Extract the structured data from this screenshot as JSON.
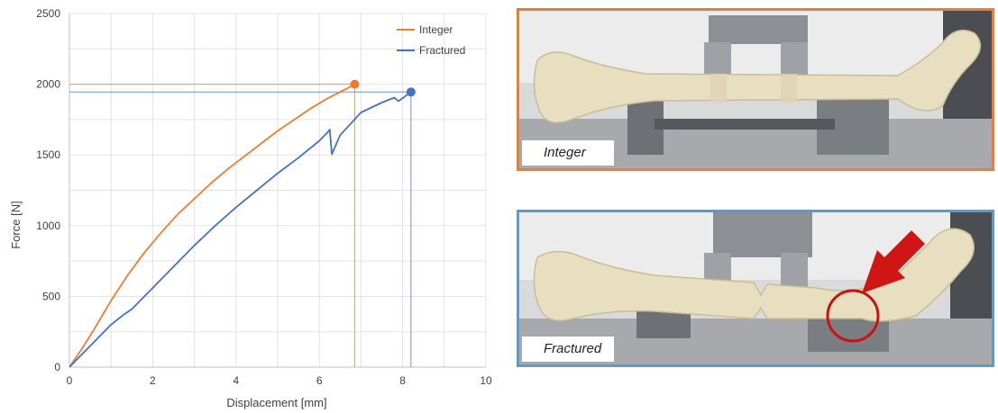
{
  "chart_data": {
    "type": "line",
    "xlabel": "Displacement [mm]",
    "ylabel": "Force  [N]",
    "xlim": [
      0,
      10
    ],
    "ylim": [
      0,
      2500
    ],
    "xticks": [
      "0",
      "2",
      "4",
      "6",
      "8",
      "10"
    ],
    "yticks": [
      "0",
      "500",
      "1000",
      "1500",
      "2000",
      "2500"
    ],
    "grid": true,
    "legend_position": "top-right",
    "series": [
      {
        "name": "Integer",
        "color": "#ED7D31",
        "x": [
          0,
          0.3,
          0.6,
          1.0,
          1.4,
          1.8,
          2.2,
          2.6,
          3.0,
          3.4,
          3.8,
          4.2,
          4.6,
          5.0,
          5.4,
          5.8,
          6.2,
          6.5,
          6.7,
          6.85
        ],
        "y": [
          0,
          130,
          270,
          470,
          650,
          810,
          950,
          1080,
          1190,
          1300,
          1400,
          1490,
          1580,
          1670,
          1750,
          1830,
          1900,
          1945,
          1975,
          2000
        ],
        "end_point": [
          6.85,
          2000
        ],
        "reference_lines": {
          "x": 6.85,
          "y": 2000
        }
      },
      {
        "name": "Fractured",
        "color": "#4472C4",
        "x": [
          0,
          0.5,
          1.0,
          1.3,
          1.5,
          2.0,
          2.5,
          3.0,
          3.5,
          4.0,
          4.5,
          5.0,
          5.5,
          6.0,
          6.2,
          6.25,
          6.3,
          6.5,
          7.0,
          7.5,
          7.8,
          7.9,
          8.2
        ],
        "y": [
          0,
          150,
          300,
          370,
          410,
          560,
          710,
          860,
          1000,
          1130,
          1250,
          1370,
          1480,
          1600,
          1660,
          1680,
          1505,
          1640,
          1800,
          1870,
          1905,
          1880,
          1945
        ],
        "end_point": [
          8.2,
          1945
        ],
        "reference_lines": {
          "x": 8.2,
          "y": 1945
        }
      }
    ]
  },
  "photos": [
    {
      "caption": "Integer",
      "border_color": "#ED7D31"
    },
    {
      "caption": "Fractured",
      "border_color": "#5B9BD5"
    }
  ]
}
